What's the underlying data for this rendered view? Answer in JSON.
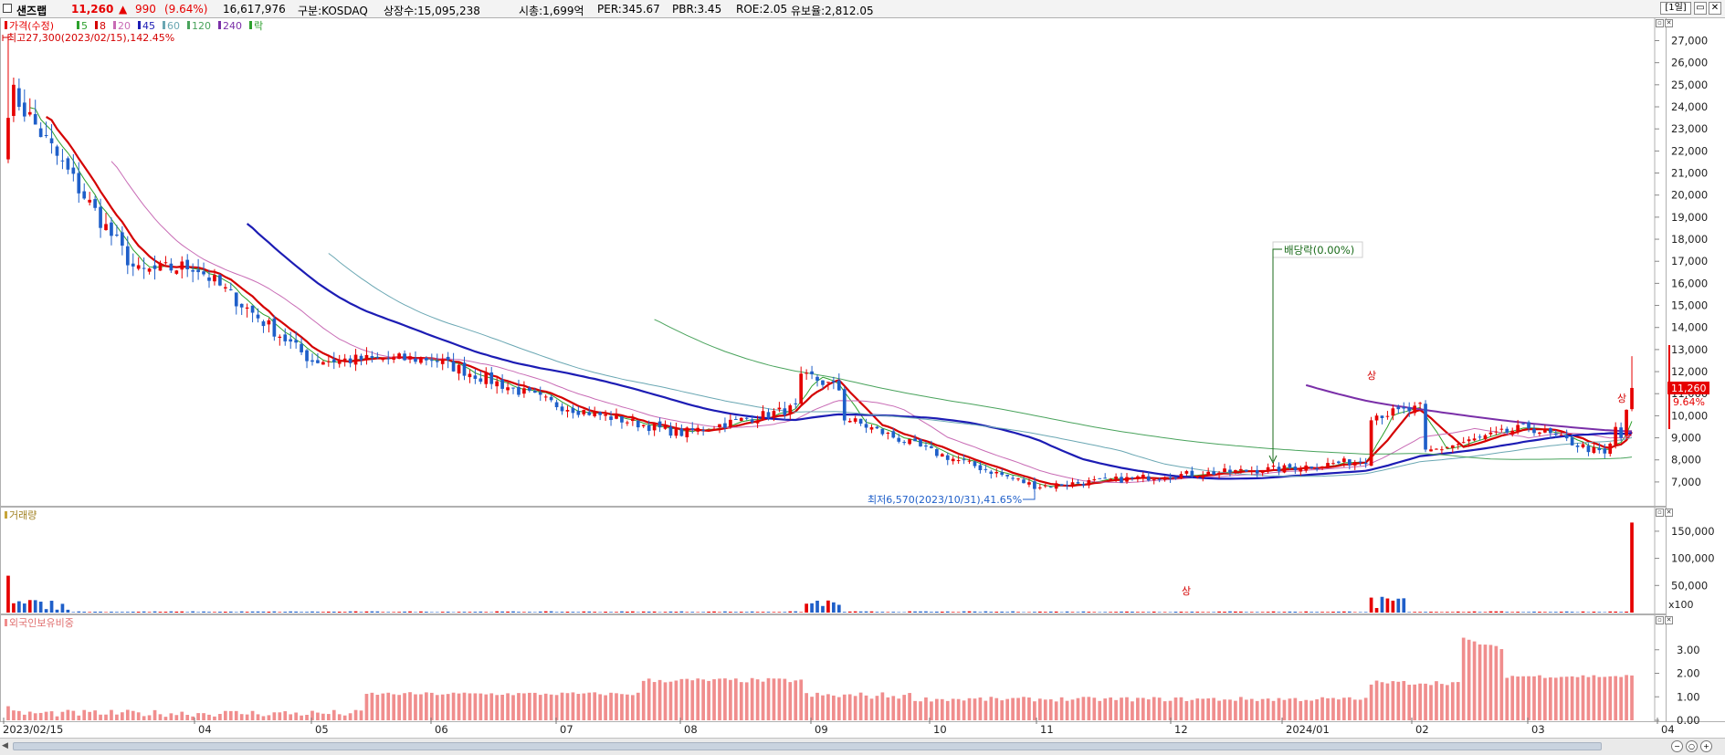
{
  "header": {
    "stock_name": "샌즈랩",
    "price": "11,260",
    "change_arrow": "▲",
    "change": "990",
    "change_pct": "(9.64%)",
    "volume": "16,617,976",
    "market": "구분:KOSDAQ",
    "listed_shares": "상장수:15,095,238",
    "market_cap": "시총:1,699억",
    "per": "PER:345.67",
    "pbr": "PBR:3.45",
    "roe": "ROE:2.05",
    "float_ratio": "유보율:2,812.05",
    "period_button": "[1일]"
  },
  "colors": {
    "up": "#e60000",
    "down": "#1f5fc9",
    "ma5": "#2ca02c",
    "ma8": "#d40000",
    "ma20": "#c86bb5",
    "ma45": "#1c1cb4",
    "ma60": "#6aa7b3",
    "ma120": "#49a35c",
    "ma240": "#7a2fa8",
    "foreign_bar": "#f08d8d"
  },
  "price_panel": {
    "legend": [
      {
        "label": "가격(수정)",
        "color": "#e60000"
      },
      {
        "label": "5",
        "color": "#2ca02c"
      },
      {
        "label": "8",
        "color": "#d40000"
      },
      {
        "label": "20",
        "color": "#c86bb5"
      },
      {
        "label": "45",
        "color": "#1c1cb4"
      },
      {
        "label": "60",
        "color": "#6aa7b3"
      },
      {
        "label": "120",
        "color": "#49a35c"
      },
      {
        "label": "240",
        "color": "#7a2fa8"
      },
      {
        "label": "락",
        "color": "#2ca02c"
      }
    ],
    "high_annotation": "최고27,300(2023/02/15),142.45%",
    "low_annotation": "최저6,570(2023/10/31),41.65%",
    "dividend_annotation": "배당락(0.00%)",
    "limit_up_label": "상",
    "current_price_tag": "11,260",
    "current_pct_tag": "9.64%",
    "y_ticks": [
      "27,000",
      "26,000",
      "25,000",
      "24,000",
      "23,000",
      "22,000",
      "21,000",
      "20,000",
      "19,000",
      "18,000",
      "17,000",
      "16,000",
      "15,000",
      "14,000",
      "13,000",
      "12,000",
      "11,000",
      "10,000",
      "9,000",
      "8,000",
      "7,000"
    ]
  },
  "volume_panel": {
    "title": "거래량",
    "y_ticks": [
      "150,000",
      "100,000",
      "50,000"
    ],
    "unit": "x100"
  },
  "foreign_panel": {
    "title": "외국인보유비중",
    "y_ticks": [
      "3.00",
      "2.00",
      "1.00",
      "0.00"
    ]
  },
  "x_labels": [
    "2023/02/15",
    "04",
    "05",
    "06",
    "07",
    "08",
    "09",
    "10",
    "11",
    "12",
    "2024/01",
    "02",
    "03",
    "04"
  ],
  "chart_data": {
    "type": "candlestick",
    "x_range": [
      "2023/02/15",
      "2024/03"
    ],
    "price_ylim": [
      6500,
      27600
    ],
    "volume_ylim": [
      0,
      170000
    ],
    "foreign_ylim": [
      0,
      4.0
    ],
    "price_anchors": [
      {
        "date": "2023/02/15",
        "close": 25000
      },
      {
        "date": "2023/03",
        "close": 16500
      },
      {
        "date": "2023/04",
        "close": 16800
      },
      {
        "date": "2023/05",
        "close": 12500
      },
      {
        "date": "2023/06",
        "close": 12600
      },
      {
        "date": "2023/07",
        "close": 10500
      },
      {
        "date": "2023/08",
        "close": 9200
      },
      {
        "date": "2023/09",
        "close": 10500
      },
      {
        "date": "2023/10",
        "close": 8400
      },
      {
        "date": "2023/10/31",
        "close": 6800
      },
      {
        "date": "2023/11",
        "close": 7300
      },
      {
        "date": "2023/12",
        "close": 7600
      },
      {
        "date": "2024/01",
        "close": 8200
      },
      {
        "date": "2024/02",
        "close": 9500
      },
      {
        "date": "2024/03",
        "close": 8200
      },
      {
        "date": "last",
        "close": 11260
      }
    ],
    "high": 27300,
    "low": 6570,
    "last_close": 11260
  }
}
